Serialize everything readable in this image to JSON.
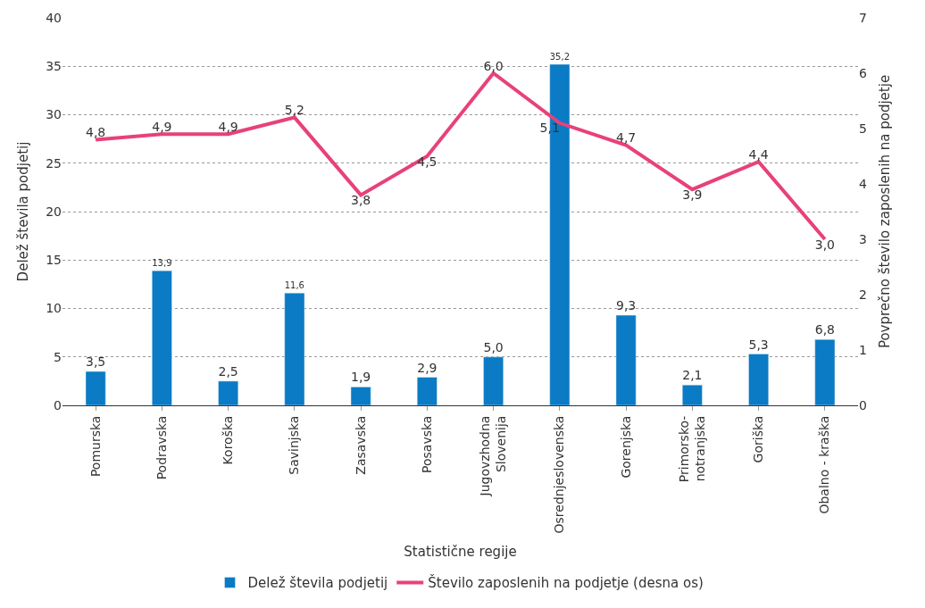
{
  "chart_data": {
    "type": "bar",
    "xlabel": "Statistične regije",
    "ylabel": "Delež števila podjetij",
    "y2label": "Povprečno število zaposlenih na podjetje",
    "categories": [
      "Pomurska",
      "Podravska",
      "Koroška",
      "Savinjska",
      "Zasavska",
      "Posavska",
      "Jugovzhodna\nSlovenija",
      "Osrednjeslovenska",
      "Gorenjska",
      "Primorsko-\nnotranjska",
      "Goriška",
      "Obalno - kraška"
    ],
    "series": [
      {
        "name": "Delež števila podjetij",
        "color": "#0a7bc4",
        "values": [
          3.5,
          13.9,
          2.5,
          11.6,
          1.9,
          2.9,
          5.0,
          35.2,
          9.3,
          2.1,
          5.3,
          6.8
        ],
        "value_labels": [
          "3,5",
          "13,9",
          "2,5",
          "11,6",
          "1,9",
          "2,9",
          "5,0",
          "35,2",
          "9,3",
          "2,1",
          "5,3",
          "6,8"
        ]
      },
      {
        "name": "Število zaposlenih na podjetje (desna os)",
        "type": "line",
        "axis": "y2",
        "color": "#e8417a",
        "values": [
          4.8,
          4.9,
          4.9,
          5.2,
          3.8,
          4.5,
          6.0,
          5.1,
          4.7,
          3.9,
          4.4,
          3.0
        ],
        "value_labels": [
          "4,8",
          "4,9",
          "4,9",
          "5,2",
          "3,8",
          "4,5",
          "6,0",
          "5,1",
          "4,7",
          "3,9",
          "4,4",
          "3,0"
        ]
      }
    ],
    "ylim": [
      0,
      40
    ],
    "yticks": [
      0,
      5,
      10,
      15,
      20,
      25,
      30,
      35,
      40
    ],
    "y2lim": [
      0,
      7
    ],
    "y2ticks": [
      0,
      1,
      2,
      3,
      4,
      5,
      6,
      7
    ],
    "grid": "y",
    "legend": "bottom",
    "marker": "none",
    "line_style": "solid"
  }
}
